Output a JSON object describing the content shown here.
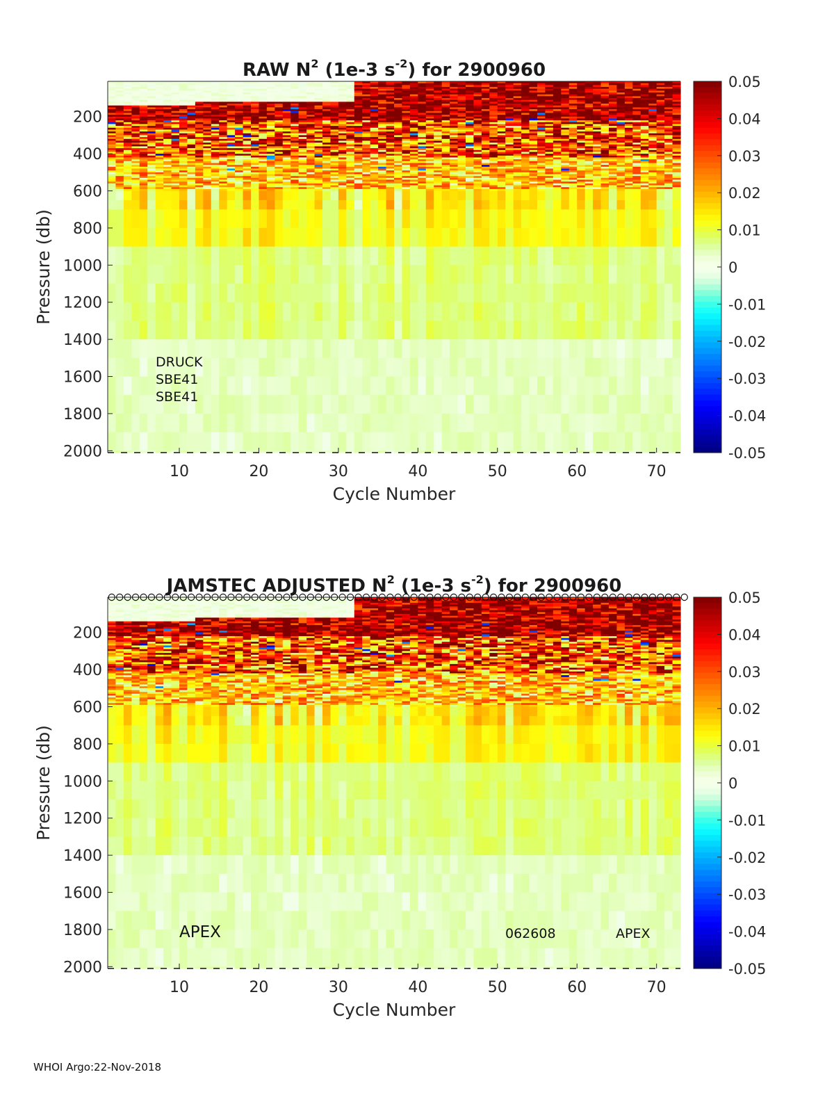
{
  "footer": "WHOI Argo:22-Nov-2018",
  "colors": {
    "axis": "#262626",
    "background": "#ffffff"
  },
  "chart_data": [
    {
      "type": "heatmap",
      "title_parts": [
        "RAW N",
        "2",
        " (1e-3 s",
        "-2",
        ") for 2900960"
      ],
      "xlabel": "Cycle Number",
      "ylabel": "Pressure (db)",
      "xlim": [
        1,
        73
      ],
      "ylim": [
        2010,
        10
      ],
      "xticks": [
        10,
        20,
        30,
        40,
        50,
        60,
        70
      ],
      "yticks": [
        200,
        400,
        600,
        800,
        1000,
        1200,
        1400,
        1600,
        1800,
        2000
      ],
      "colorbar": {
        "clim": [
          -0.05,
          0.05
        ],
        "ticks": [
          "0.05",
          "0.04",
          "0.03",
          "0.02",
          "0.01",
          "0",
          "-0.01",
          "-0.02",
          "-0.03",
          "-0.04",
          "-0.05"
        ]
      },
      "colormap": "jet-with-white-center",
      "depth_profile": {
        "surface_mean": 0.045,
        "upper_mean": 0.03,
        "thermocline_mean": 0.018,
        "mid_mean": 0.01,
        "deep_mean": 0.006,
        "abyss_mean": 0.004
      },
      "annotations": [
        "DRUCK",
        "SBE41",
        "SBE41"
      ],
      "markers": false
    },
    {
      "type": "heatmap",
      "title_parts": [
        "JAMSTEC  ADJUSTED N",
        "2",
        " (1e-3 s",
        "-2",
        ") for 2900960"
      ],
      "xlabel": "Cycle Number",
      "ylabel": "Pressure (db)",
      "xlim": [
        1,
        73
      ],
      "ylim": [
        2010,
        10
      ],
      "xticks": [
        10,
        20,
        30,
        40,
        50,
        60,
        70
      ],
      "yticks": [
        200,
        400,
        600,
        800,
        1000,
        1200,
        1400,
        1600,
        1800,
        2000
      ],
      "colorbar": {
        "clim": [
          -0.05,
          0.05
        ],
        "ticks": [
          "0.05",
          "0.04",
          "0.03",
          "0.02",
          "0.01",
          "0",
          "-0.01",
          "-0.02",
          "-0.03",
          "-0.04",
          "-0.05"
        ]
      },
      "colormap": "jet-with-white-center",
      "depth_profile": {
        "surface_mean": 0.045,
        "upper_mean": 0.03,
        "thermocline_mean": 0.018,
        "mid_mean": 0.01,
        "deep_mean": 0.006,
        "abyss_mean": 0.004
      },
      "annotations_left": [
        "APEX"
      ],
      "annotations_right": [
        "062608",
        "APEX"
      ],
      "markers": true
    }
  ]
}
